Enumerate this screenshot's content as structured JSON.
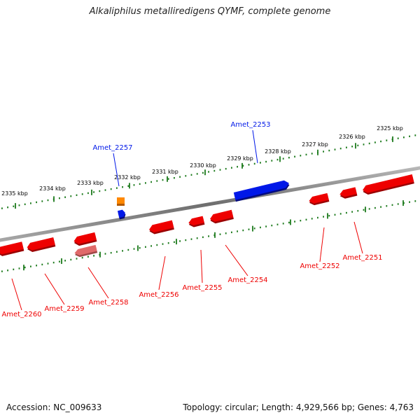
{
  "title": "Alkaliphilus metalliredigens QYMF, complete genome",
  "footer": {
    "accession": "Accession: NC_009633",
    "info": "Topology: circular; Length: 4,929,566 bp; Genes: 4,763"
  },
  "colors": {
    "forward_gene": "#0018e8",
    "reverse_gene": "#ee0000",
    "reverse_pseudo": "#e06a6a",
    "forward_other": "#ff8800",
    "ruler": "#1c7a1c",
    "backbone": "#808080"
  },
  "ruler_labels": [
    "2325 kbp",
    "2326 kbp",
    "2327 kbp",
    "2328 kbp",
    "2329 kbp",
    "2330 kbp",
    "2331 kbp",
    "2332 kbp",
    "2333 kbp",
    "2334 kbp",
    "2335 kbp"
  ],
  "genes": [
    {
      "label": "Amet_2251",
      "strand": "reverse"
    },
    {
      "label": "Amet_2252",
      "strand": "reverse"
    },
    {
      "label": "Amet_2253",
      "strand": "forward"
    },
    {
      "label": "Amet_2254",
      "strand": "reverse"
    },
    {
      "label": "Amet_2255",
      "strand": "reverse"
    },
    {
      "label": "Amet_2256",
      "strand": "reverse"
    },
    {
      "label": "Amet_2257",
      "strand": "forward"
    },
    {
      "label": "Amet_2258",
      "strand": "reverse"
    },
    {
      "label": "Amet_2259",
      "strand": "reverse"
    },
    {
      "label": "Amet_2260",
      "strand": "reverse"
    }
  ]
}
